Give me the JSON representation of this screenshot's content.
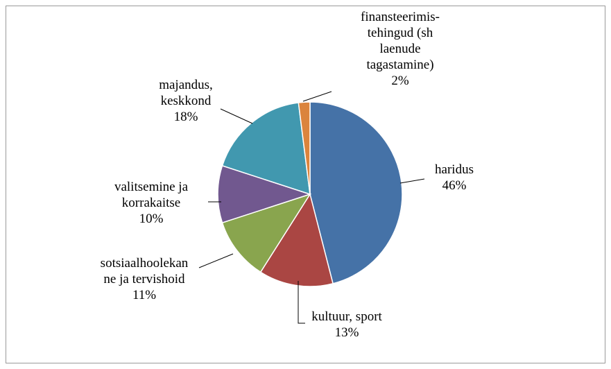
{
  "chart_data": {
    "type": "pie",
    "categories": [
      "haridus",
      "kultuur, sport",
      "sotsiaalhoolekan\nne ja tervishoid",
      "valitsemine ja\nkorrakaitse",
      "majandus,\nkeskkond",
      "finansteerimis-\ntehingud (sh\nlaenude\ntagastamine)"
    ],
    "values": [
      46,
      13,
      11,
      10,
      18,
      2
    ],
    "value_labels": [
      "46%",
      "13%",
      "11%",
      "10%",
      "18%",
      "2%"
    ],
    "colors": [
      "#4572a7",
      "#aa4643",
      "#89a54e",
      "#71588f",
      "#4198af",
      "#db843d"
    ]
  }
}
